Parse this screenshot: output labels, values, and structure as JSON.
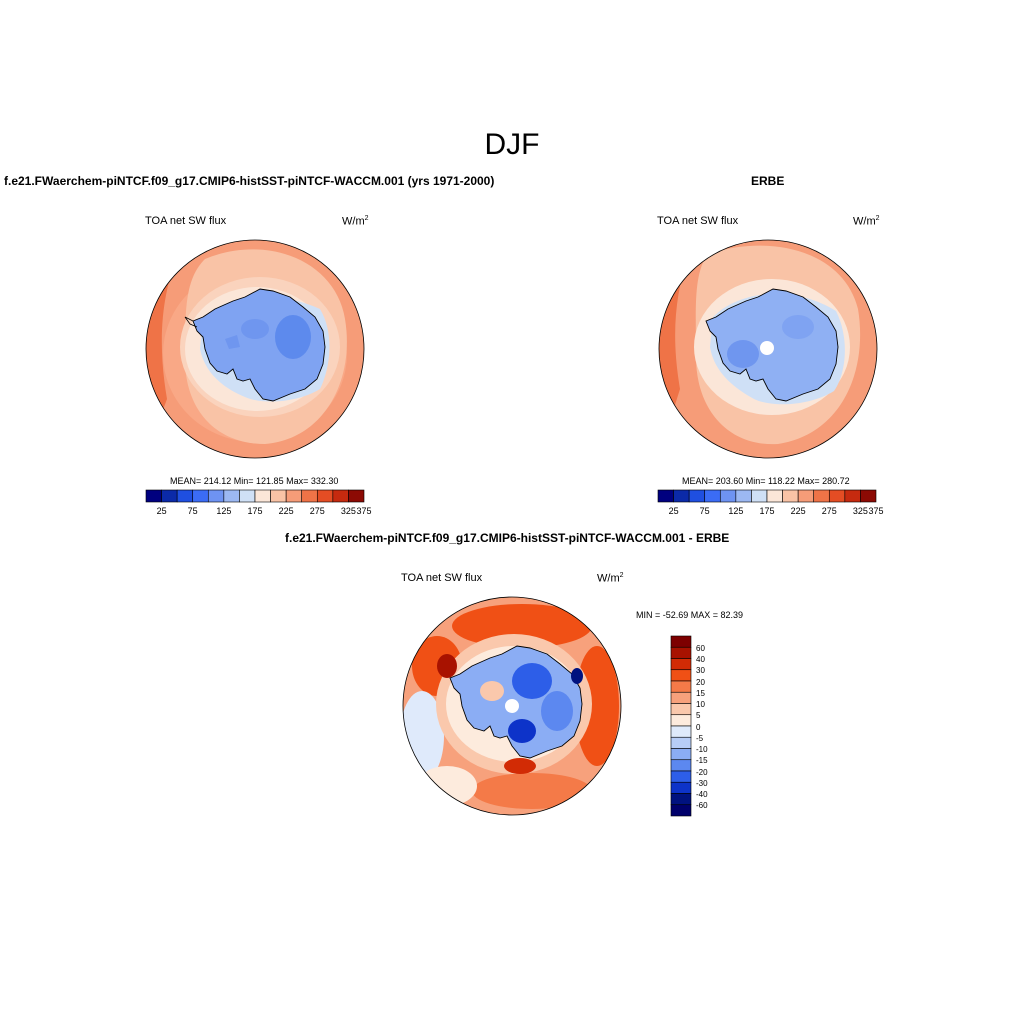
{
  "figure": {
    "title": "DJF"
  },
  "panels": [
    {
      "title": "f.e21.FWaerchem-piNTCF.f09_g17.CMIP6-histSST-piNTCF-WACCM.001 (yrs 1971-2000)",
      "left_label": "TOA net SW flux",
      "units": "W/m",
      "units_sup": "2",
      "stats": "MEAN= 214.12   Min= 121.85   Max= 332.30",
      "colorbar_ticks": [
        "25",
        "75",
        "125",
        "175",
        "225",
        "275",
        "325",
        "375"
      ]
    },
    {
      "title": "ERBE",
      "left_label": "TOA net SW flux",
      "units": "W/m",
      "units_sup": "2",
      "stats": "MEAN= 203.60   Min= 118.22   Max= 280.72",
      "colorbar_ticks": [
        "25",
        "75",
        "125",
        "175",
        "225",
        "275",
        "325",
        "375"
      ]
    },
    {
      "title": "f.e21.FWaerchem-piNTCF.f09_g17.CMIP6-histSST-piNTCF-WACCM.001 - ERBE",
      "left_label": "TOA net SW flux",
      "units": "W/m",
      "units_sup": "2",
      "stats": "MIN = -52.69 MAX =  82.39",
      "colorbar_ticks": [
        "60",
        "40",
        "30",
        "20",
        "15",
        "10",
        "5",
        "0",
        "-5",
        "-10",
        "-15",
        "-20",
        "-30",
        "-40",
        "-60"
      ]
    }
  ],
  "colors": {
    "abs_scale": [
      "#00007f",
      "#0b2aa8",
      "#1f4fe0",
      "#3b6cf5",
      "#6e93f2",
      "#9cb8f2",
      "#cfe0f6",
      "#fbe6d8",
      "#f9c3a6",
      "#f69c78",
      "#ef7347",
      "#e44d24",
      "#c62a0f",
      "#8c0a04"
    ],
    "diff_scale": [
      "#7d0000",
      "#a81200",
      "#d22b05",
      "#f05015",
      "#f47a48",
      "#f7a17c",
      "#fac8ac",
      "#fdebdd",
      "#dfeafb",
      "#b7cdf7",
      "#8badf4",
      "#5c88f0",
      "#2d5ee8",
      "#0d33c9",
      "#00127f",
      "#00006b"
    ]
  }
}
